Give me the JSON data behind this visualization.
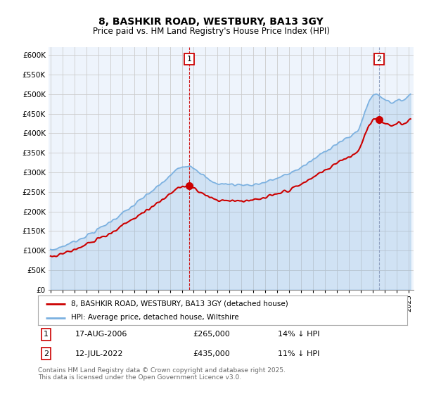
{
  "title": "8, BASHKIR ROAD, WESTBURY, BA13 3GY",
  "subtitle": "Price paid vs. HM Land Registry's House Price Index (HPI)",
  "sale1_label_date": "17-AUG-2006",
  "sale1_price": 265000,
  "sale1_hpi_diff": "14% ↓ HPI",
  "sale2_label_date": "12-JUL-2022",
  "sale2_price": 435000,
  "sale2_hpi_diff": "11% ↓ HPI",
  "ylabel_vals": [
    0,
    50000,
    100000,
    150000,
    200000,
    250000,
    300000,
    350000,
    400000,
    450000,
    500000,
    550000,
    600000
  ],
  "ylabel_texts": [
    "£0",
    "£50K",
    "£100K",
    "£150K",
    "£200K",
    "£250K",
    "£300K",
    "£350K",
    "£400K",
    "£450K",
    "£500K",
    "£550K",
    "£600K"
  ],
  "hpi_color": "#7ab0e0",
  "hpi_fill_color": "#ddeeff",
  "price_color": "#cc0000",
  "marker_color": "#cc0000",
  "dashed_color": "#cc0000",
  "dashed2_color": "#aaaacc",
  "legend_label_price": "8, BASHKIR ROAD, WESTBURY, BA13 3GY (detached house)",
  "legend_label_hpi": "HPI: Average price, detached house, Wiltshire",
  "footer": "Contains HM Land Registry data © Crown copyright and database right 2025.\nThis data is licensed under the Open Government Licence v3.0.",
  "background_color": "#ffffff",
  "plot_bg_color": "#eef4fc",
  "grid_color": "#cccccc",
  "start_year": 1995,
  "end_year": 2025
}
